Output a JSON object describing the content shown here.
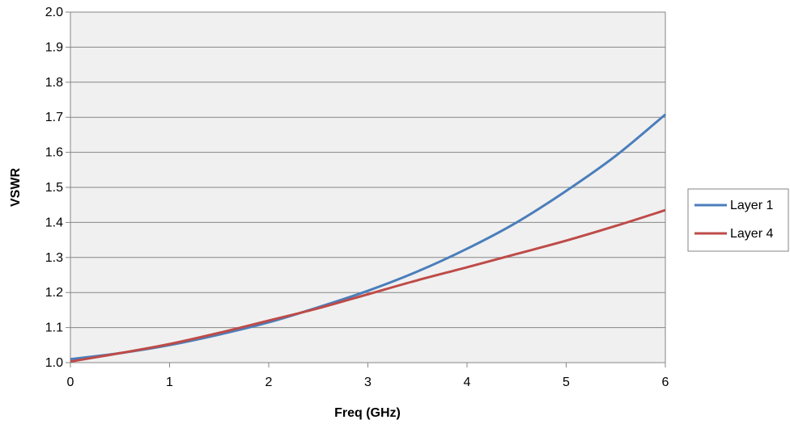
{
  "chart_data": {
    "type": "line",
    "title": "",
    "xlabel": "Freq (GHz)",
    "ylabel": "VSWR",
    "xlim": [
      0,
      6
    ],
    "ylim": [
      1.0,
      2.0
    ],
    "x_ticks": [
      "0",
      "1",
      "2",
      "3",
      "4",
      "5",
      "6"
    ],
    "y_ticks": [
      "1.0",
      "1.1",
      "1.2",
      "1.3",
      "1.4",
      "1.5",
      "1.6",
      "1.7",
      "1.8",
      "1.9",
      "2.0"
    ],
    "grid": "horizontal",
    "plot_background": "#f0f0f0",
    "legend_position": "right",
    "x": [
      0,
      0.5,
      1,
      1.5,
      2,
      2.5,
      3,
      3.5,
      4,
      4.5,
      5,
      5.5,
      6
    ],
    "series": [
      {
        "name": "Layer 1",
        "color": "#4a7ebb",
        "values": [
          1.01,
          1.027,
          1.05,
          1.08,
          1.115,
          1.158,
          1.205,
          1.26,
          1.325,
          1.4,
          1.49,
          1.59,
          1.708
        ]
      },
      {
        "name": "Layer 4",
        "color": "#be4b48",
        "values": [
          1.003,
          1.027,
          1.053,
          1.085,
          1.12,
          1.155,
          1.195,
          1.235,
          1.272,
          1.31,
          1.348,
          1.39,
          1.435
        ]
      }
    ]
  }
}
